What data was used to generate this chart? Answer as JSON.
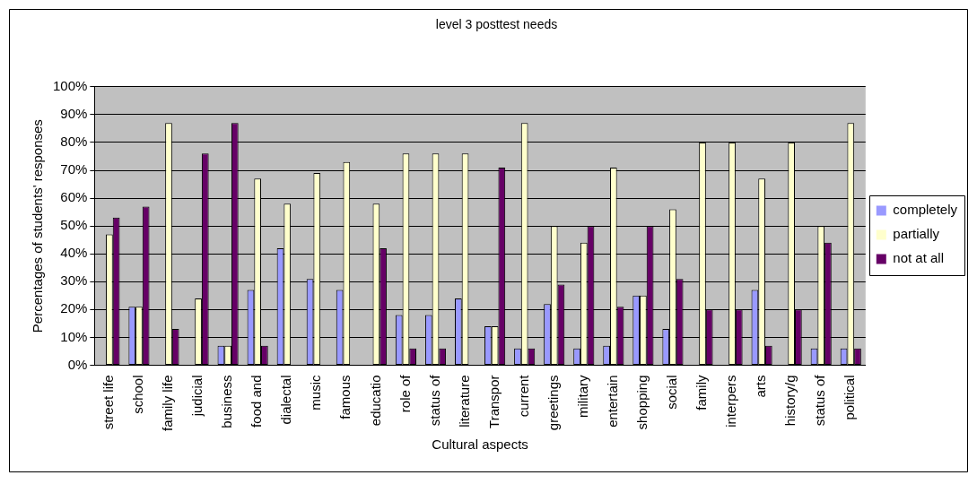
{
  "chart_data": {
    "type": "bar",
    "title": "level 3 posttest needs",
    "xlabel": "Cultural aspects",
    "ylabel": "Percentages of students' responses",
    "categories": [
      "street life",
      "school",
      "family life",
      "judicial",
      "business",
      "food and",
      "dialectal",
      "music",
      "famous",
      "educatio",
      "role of",
      "status of",
      "literature",
      "Transpor",
      "current",
      "greetings",
      "military",
      "entertain",
      "shopping",
      "social",
      "family",
      "interpers",
      "arts",
      "history/g",
      "status of",
      "political"
    ],
    "series": [
      {
        "name": "completely",
        "color": "#9999ff",
        "values": [
          0,
          21,
          0,
          0,
          7,
          27,
          42,
          31,
          27,
          0,
          18,
          18,
          24,
          14,
          6,
          22,
          6,
          7,
          25,
          13,
          0,
          0,
          27,
          0,
          6,
          6
        ]
      },
      {
        "name": "partially",
        "color": "#ffffcc",
        "values": [
          47,
          21,
          87,
          24,
          7,
          67,
          58,
          69,
          73,
          58,
          76,
          76,
          76,
          14,
          87,
          50,
          44,
          71,
          25,
          56,
          80,
          80,
          67,
          80,
          50,
          87
        ]
      },
      {
        "name": "not at all",
        "color": "#660066",
        "values": [
          53,
          57,
          13,
          76,
          87,
          7,
          0,
          0,
          0,
          42,
          6,
          6,
          0,
          71,
          6,
          29,
          50,
          21,
          50,
          31,
          20,
          20,
          7,
          20,
          44,
          6
        ]
      }
    ],
    "ylim": [
      0,
      100
    ],
    "yticks": [
      {
        "value": 0,
        "label": "0%"
      },
      {
        "value": 10,
        "label": "10%"
      },
      {
        "value": 20,
        "label": "20%"
      },
      {
        "value": 30,
        "label": "30%"
      },
      {
        "value": 40,
        "label": "40%"
      },
      {
        "value": 50,
        "label": "50%"
      },
      {
        "value": 60,
        "label": "60%"
      },
      {
        "value": 70,
        "label": "70%"
      },
      {
        "value": 80,
        "label": "80%"
      },
      {
        "value": 90,
        "label": "90%"
      },
      {
        "value": 100,
        "label": "100%"
      }
    ],
    "grid": "y",
    "legend": "right"
  }
}
